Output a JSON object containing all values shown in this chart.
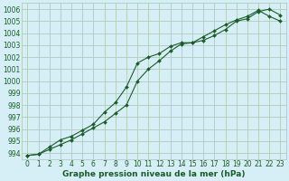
{
  "xlabel": "Graphe pression niveau de la mer (hPa)",
  "xlim": [
    -0.5,
    23.5
  ],
  "ylim": [
    993.5,
    1006.5
  ],
  "yticks": [
    994,
    995,
    996,
    997,
    998,
    999,
    1000,
    1001,
    1002,
    1003,
    1004,
    1005,
    1006
  ],
  "xticks": [
    0,
    1,
    2,
    3,
    4,
    5,
    6,
    7,
    8,
    9,
    10,
    11,
    12,
    13,
    14,
    15,
    16,
    17,
    18,
    19,
    20,
    21,
    22,
    23
  ],
  "bg_color": "#d6eef5",
  "grid_color": "#b0ccbb",
  "line_color": "#1a5c2a",
  "line1_x": [
    0,
    1,
    2,
    3,
    4,
    5,
    6,
    7,
    8,
    9,
    10,
    11,
    12,
    13,
    14,
    15,
    16,
    17,
    18,
    19,
    20,
    21,
    22,
    23
  ],
  "line1_y": [
    993.8,
    993.9,
    994.3,
    994.7,
    995.1,
    995.6,
    996.1,
    996.6,
    997.3,
    998.0,
    1000.0,
    1001.0,
    1001.7,
    1002.5,
    1003.1,
    1003.2,
    1003.4,
    1003.8,
    1004.3,
    1005.0,
    1005.2,
    1005.8,
    1006.0,
    1005.5
  ],
  "line2_x": [
    0,
    1,
    2,
    3,
    4,
    5,
    6,
    7,
    8,
    9,
    10,
    11,
    12,
    13,
    14,
    15,
    16,
    17,
    18,
    19,
    20,
    21,
    22,
    23
  ],
  "line2_y": [
    993.8,
    993.9,
    994.5,
    995.1,
    995.4,
    995.9,
    996.4,
    997.4,
    998.2,
    999.5,
    1001.5,
    1002.0,
    1002.3,
    1002.9,
    1003.2,
    1003.2,
    1003.7,
    1004.2,
    1004.7,
    1005.1,
    1005.4,
    1005.9,
    1005.4,
    1005.0
  ],
  "font_color": "#1a5c2a",
  "font_size_ticks": 5.5,
  "font_size_label": 6.5,
  "marker": "D",
  "marker_size": 2.0,
  "linewidth": 0.8
}
